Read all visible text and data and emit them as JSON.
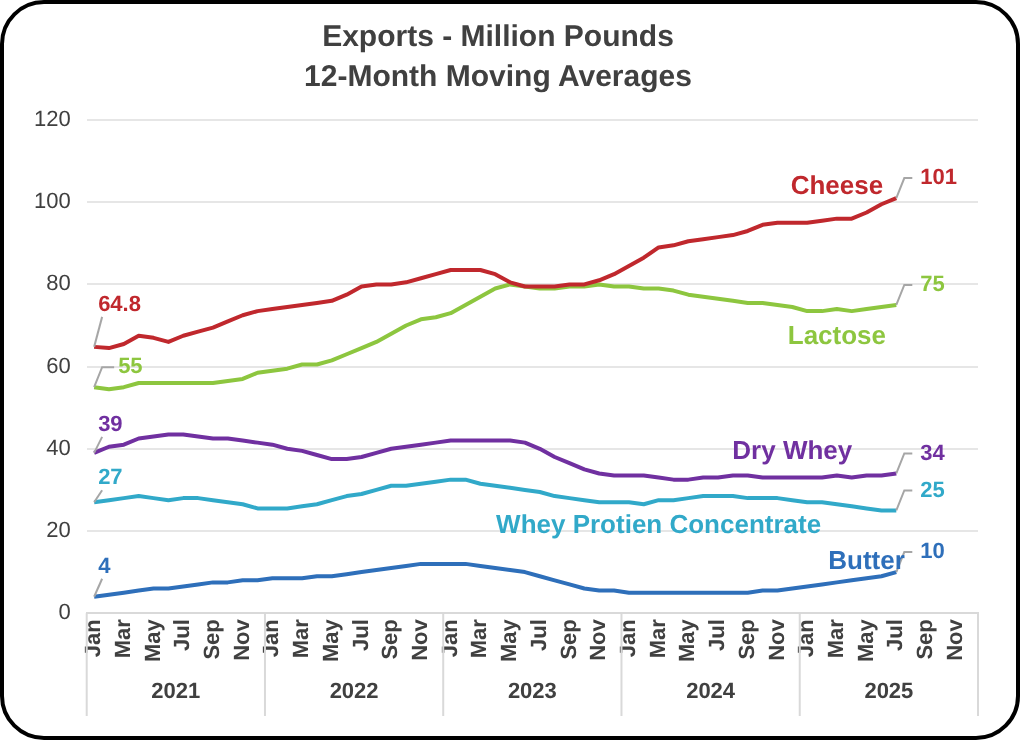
{
  "chart_data": {
    "type": "line",
    "title": "Exports - Million Pounds",
    "subtitle": "12-Month Moving Averages",
    "categories": [
      "Jan",
      null,
      "Mar",
      null,
      "May",
      null,
      "Jul",
      null,
      "Sep",
      null,
      "Nov",
      null,
      "Jan",
      null,
      "Mar",
      null,
      "May",
      null,
      "Jul",
      null,
      "Sep",
      null,
      "Nov",
      null,
      "Jan",
      null,
      "Mar",
      null,
      "May",
      null,
      "Jul",
      null,
      "Sep",
      null,
      "Nov",
      null,
      "Jan",
      null,
      "Mar",
      null,
      "May",
      null,
      "Jul",
      null,
      "Sep",
      null,
      "Nov",
      null,
      "Jan",
      null,
      "Mar",
      null,
      "May",
      null,
      "Jul",
      null,
      "Sep",
      null,
      "Nov",
      null
    ],
    "annotations": [
      "2021",
      "2022",
      "2023",
      "2024",
      "2025"
    ],
    "ylim": [
      0,
      120
    ],
    "yticks": [
      0,
      20,
      40,
      60,
      80,
      100,
      120
    ],
    "grid": "y",
    "legend": false,
    "marker": "none",
    "line_style": "solid",
    "series": [
      {
        "name": "Cheese",
        "color": "#c0282d",
        "values": [
          64.8,
          64.5,
          65.5,
          67.5,
          67,
          66,
          67.5,
          68.5,
          69.5,
          71,
          72.5,
          73.5,
          74,
          74.5,
          75,
          75.5,
          76,
          77.5,
          79.5,
          80,
          80,
          80.5,
          81.5,
          82.5,
          83.5,
          83.5,
          83.5,
          82.5,
          80.5,
          79.5,
          79.5,
          79.5,
          80,
          80,
          81,
          82.5,
          84.5,
          86.5,
          89,
          89.5,
          90.5,
          91,
          91.5,
          92,
          93,
          94.5,
          95,
          95,
          95,
          95.5,
          96,
          96,
          97.5,
          99.5,
          101,
          null,
          null,
          null,
          null,
          null
        ],
        "value_labels": [
          "64.8",
          null,
          null,
          null,
          null,
          null,
          null,
          null,
          null,
          null,
          null,
          null,
          null,
          null,
          null,
          null,
          null,
          null,
          null,
          null,
          null,
          null,
          null,
          null,
          null,
          null,
          null,
          null,
          null,
          null,
          null,
          null,
          null,
          null,
          null,
          null,
          null,
          null,
          null,
          null,
          null,
          null,
          null,
          null,
          null,
          null,
          null,
          null,
          null,
          null,
          null,
          null,
          null,
          null,
          "101",
          null,
          null,
          null,
          null,
          null
        ]
      },
      {
        "name": "Lactose",
        "color": "#8dc63f",
        "values": [
          55,
          54.5,
          55,
          56,
          56,
          56,
          56,
          56,
          56,
          56.5,
          57,
          58.5,
          59,
          59.5,
          60.5,
          60.5,
          61.5,
          63,
          64.5,
          66,
          68,
          70,
          71.5,
          72,
          73,
          75,
          77,
          79,
          80,
          79.5,
          79,
          79,
          79.5,
          79.5,
          80,
          79.5,
          79.5,
          79,
          79,
          78.5,
          77.5,
          77,
          76.5,
          76,
          75.5,
          75.5,
          75,
          74.5,
          73.5,
          73.5,
          74,
          73.5,
          74,
          74.5,
          75,
          null,
          null,
          null,
          null,
          null
        ],
        "value_labels": [
          "55",
          null,
          null,
          null,
          null,
          null,
          null,
          null,
          null,
          null,
          null,
          null,
          null,
          null,
          null,
          null,
          null,
          null,
          null,
          null,
          null,
          null,
          null,
          null,
          null,
          null,
          null,
          null,
          null,
          null,
          null,
          null,
          null,
          null,
          null,
          null,
          null,
          null,
          null,
          null,
          null,
          null,
          null,
          null,
          null,
          null,
          null,
          null,
          null,
          null,
          null,
          null,
          null,
          null,
          "75",
          null,
          null,
          null,
          null,
          null
        ]
      },
      {
        "name": "Dry Whey",
        "color": "#7030a0",
        "values": [
          39,
          40.5,
          41,
          42.5,
          43,
          43.5,
          43.5,
          43,
          42.5,
          42.5,
          42,
          41.5,
          41,
          40,
          39.5,
          38.5,
          37.5,
          37.5,
          38,
          39,
          40,
          40.5,
          41,
          41.5,
          42,
          42,
          42,
          42,
          42,
          41.5,
          40,
          38,
          36.5,
          35,
          34,
          33.5,
          33.5,
          33.5,
          33,
          32.5,
          32.5,
          33,
          33,
          33.5,
          33.5,
          33,
          33,
          33,
          33,
          33,
          33.5,
          33,
          33.5,
          33.5,
          34,
          null,
          null,
          null,
          null,
          null
        ],
        "value_labels": [
          "39",
          null,
          null,
          null,
          null,
          null,
          null,
          null,
          null,
          null,
          null,
          null,
          null,
          null,
          null,
          null,
          null,
          null,
          null,
          null,
          null,
          null,
          null,
          null,
          null,
          null,
          null,
          null,
          null,
          null,
          null,
          null,
          null,
          null,
          null,
          null,
          null,
          null,
          null,
          null,
          null,
          null,
          null,
          null,
          null,
          null,
          null,
          null,
          null,
          null,
          null,
          null,
          null,
          null,
          "34",
          null,
          null,
          null,
          null,
          null
        ]
      },
      {
        "name": "Whey Protien Concentrate",
        "color": "#31a9c9",
        "values": [
          27,
          27.5,
          28,
          28.5,
          28,
          27.5,
          28,
          28,
          27.5,
          27,
          26.5,
          25.5,
          25.5,
          25.5,
          26,
          26.5,
          27.5,
          28.5,
          29,
          30,
          31,
          31,
          31.5,
          32,
          32.5,
          32.5,
          31.5,
          31,
          30.5,
          30,
          29.5,
          28.5,
          28,
          27.5,
          27,
          27,
          27,
          26.5,
          27.5,
          27.5,
          28,
          28.5,
          28.5,
          28.5,
          28,
          28,
          28,
          27.5,
          27,
          27,
          26.5,
          26,
          25.5,
          25,
          25,
          null,
          null,
          null,
          null,
          null
        ],
        "value_labels": [
          "27",
          null,
          null,
          null,
          null,
          null,
          null,
          null,
          null,
          null,
          null,
          null,
          null,
          null,
          null,
          null,
          null,
          null,
          null,
          null,
          null,
          null,
          null,
          null,
          null,
          null,
          null,
          null,
          null,
          null,
          null,
          null,
          null,
          null,
          null,
          null,
          null,
          null,
          null,
          null,
          null,
          null,
          null,
          null,
          null,
          null,
          null,
          null,
          null,
          null,
          null,
          null,
          null,
          null,
          "25",
          null,
          null,
          null,
          null,
          null
        ]
      },
      {
        "name": "Butter",
        "color": "#2e6fba",
        "values": [
          4,
          4.5,
          5,
          5.5,
          6,
          6,
          6.5,
          7,
          7.5,
          7.5,
          8,
          8,
          8.5,
          8.5,
          8.5,
          9,
          9,
          9.5,
          10,
          10.5,
          11,
          11.5,
          12,
          12,
          12,
          12,
          11.5,
          11,
          10.5,
          10,
          9,
          8,
          7,
          6,
          5.5,
          5.5,
          5,
          5,
          5,
          5,
          5,
          5,
          5,
          5,
          5,
          5.5,
          5.5,
          6,
          6.5,
          7,
          7.5,
          8,
          8.5,
          9,
          10,
          null,
          null,
          null,
          null,
          null
        ],
        "value_labels": [
          "4",
          null,
          null,
          null,
          null,
          null,
          null,
          null,
          null,
          null,
          null,
          null,
          null,
          null,
          null,
          null,
          null,
          null,
          null,
          null,
          null,
          null,
          null,
          null,
          null,
          null,
          null,
          null,
          null,
          null,
          null,
          null,
          null,
          null,
          null,
          null,
          null,
          null,
          null,
          null,
          null,
          null,
          null,
          null,
          null,
          null,
          null,
          null,
          null,
          null,
          null,
          null,
          null,
          null,
          "10",
          null,
          null,
          null,
          null,
          null
        ]
      }
    ]
  }
}
